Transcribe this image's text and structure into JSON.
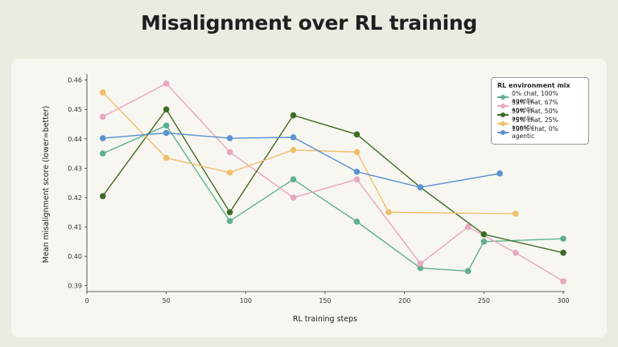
{
  "page": {
    "title": "Misalignment over RL training"
  },
  "chart_data": {
    "type": "line",
    "title": "Misalignment over RL training",
    "xlabel": "RL training steps",
    "ylabel": "Mean misalignment score (lower=better)",
    "xlim": [
      0,
      300
    ],
    "ylim": [
      0.388,
      0.461
    ],
    "x_ticks": [
      0,
      50,
      100,
      150,
      200,
      250,
      300
    ],
    "y_ticks": [
      0.39,
      0.4,
      0.41,
      0.42,
      0.43,
      0.44,
      0.45,
      0.46
    ],
    "grid": false,
    "legend": {
      "title": "RL environment mix",
      "placement": "top-right"
    },
    "series": [
      {
        "name": "0% chat, 100% agentic",
        "color": "#5fb08f",
        "x": [
          10,
          50,
          90,
          130,
          170,
          210,
          240,
          250,
          300
        ],
        "y": [
          0.435,
          0.4445,
          0.412,
          0.4262,
          0.4118,
          0.396,
          0.395,
          0.405,
          0.406
        ]
      },
      {
        "name": "33% chat, 67% agentic",
        "color": "#e8a6bf",
        "x": [
          10,
          50,
          90,
          130,
          170,
          210,
          240,
          270,
          300
        ],
        "y": [
          0.4475,
          0.4588,
          0.4355,
          0.42,
          0.4262,
          0.3975,
          0.41,
          0.4012,
          0.3915
        ]
      },
      {
        "name": "50% chat, 50% agentic",
        "color": "#3e6b24",
        "x": [
          10,
          50,
          90,
          130,
          170,
          210,
          250,
          300
        ],
        "y": [
          0.4205,
          0.45,
          0.415,
          0.448,
          0.4415,
          0.4235,
          0.4075,
          0.4012
        ]
      },
      {
        "name": "75% chat, 25% agentic",
        "color": "#f0bf6a",
        "x": [
          10,
          50,
          90,
          130,
          170,
          190,
          270
        ],
        "y": [
          0.4558,
          0.4335,
          0.4285,
          0.4362,
          0.4355,
          0.415,
          0.4145
        ]
      },
      {
        "name": "100% chat, 0% agentic",
        "color": "#5b92cf",
        "x": [
          10,
          50,
          90,
          130,
          170,
          210,
          260
        ],
        "y": [
          0.4402,
          0.442,
          0.4402,
          0.4405,
          0.4288,
          0.4235,
          0.4282
        ]
      }
    ]
  }
}
